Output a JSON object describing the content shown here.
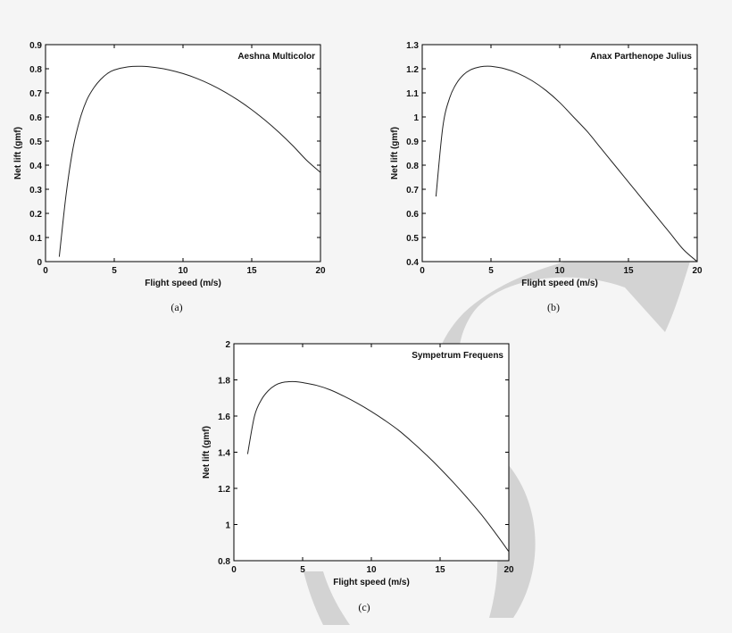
{
  "chart_data": [
    {
      "id": "a",
      "type": "line",
      "title": "Aeshna Multicolor",
      "xlabel": "Flight speed (m/s)",
      "ylabel": "Net lift (gmf)",
      "caption": "(a)",
      "xlim": [
        0,
        20
      ],
      "ylim": [
        0,
        0.9
      ],
      "xticks": [
        0,
        5,
        10,
        15,
        20
      ],
      "yticks": [
        0,
        0.1,
        0.2,
        0.3,
        0.4,
        0.5,
        0.6,
        0.7,
        0.8,
        0.9
      ],
      "ytick_labels": [
        "0",
        "0.1",
        "0.2",
        "0.3",
        "0.4",
        "0.5",
        "0.6",
        "0.7",
        "0.8",
        "0.9"
      ],
      "grid": false,
      "series": [
        {
          "x": [
            1,
            1.5,
            2,
            2.5,
            3,
            3.5,
            4,
            4.5,
            5,
            6,
            7,
            8,
            9,
            10,
            11,
            12,
            13,
            14,
            15,
            16,
            17,
            18,
            19,
            20
          ],
          "y": [
            0.02,
            0.28,
            0.47,
            0.59,
            0.67,
            0.72,
            0.755,
            0.78,
            0.795,
            0.808,
            0.81,
            0.805,
            0.795,
            0.78,
            0.76,
            0.735,
            0.705,
            0.67,
            0.63,
            0.585,
            0.535,
            0.48,
            0.42,
            0.37
          ]
        }
      ]
    },
    {
      "id": "b",
      "type": "line",
      "title": "Anax Parthenope Julius",
      "xlabel": "Flight speed (m/s)",
      "ylabel": "Net lift (gmf)",
      "caption": "(b)",
      "xlim": [
        0,
        20
      ],
      "ylim": [
        0.4,
        1.3
      ],
      "xticks": [
        0,
        5,
        10,
        15,
        20
      ],
      "yticks": [
        0.4,
        0.5,
        0.6,
        0.7,
        0.8,
        0.9,
        1.0,
        1.1,
        1.2,
        1.3
      ],
      "ytick_labels": [
        "0.4",
        "0.5",
        "0.6",
        "0.7",
        "0.8",
        "0.9",
        "1",
        "1.1",
        "1.2",
        "1.3"
      ],
      "grid": false,
      "series": [
        {
          "x": [
            1,
            1.5,
            2,
            2.5,
            3,
            3.5,
            4,
            4.5,
            5,
            6,
            7,
            8,
            9,
            10,
            11,
            12,
            13,
            14,
            15,
            16,
            17,
            18,
            19,
            20
          ],
          "y": [
            0.67,
            0.96,
            1.08,
            1.14,
            1.175,
            1.195,
            1.205,
            1.21,
            1.21,
            1.2,
            1.18,
            1.15,
            1.11,
            1.06,
            1.0,
            0.94,
            0.87,
            0.8,
            0.73,
            0.66,
            0.59,
            0.52,
            0.45,
            0.4
          ]
        }
      ]
    },
    {
      "id": "c",
      "type": "line",
      "title": "Sympetrum Frequens",
      "xlabel": "Flight speed (m/s)",
      "ylabel": "Net lift (gmf)",
      "caption": "(c)",
      "xlim": [
        0,
        20
      ],
      "ylim": [
        0.8,
        2.0
      ],
      "xticks": [
        0,
        5,
        10,
        15,
        20
      ],
      "yticks": [
        0.8,
        1.0,
        1.2,
        1.4,
        1.6,
        1.8,
        2.0
      ],
      "ytick_labels": [
        "0.8",
        "1",
        "1.2",
        "1.4",
        "1.6",
        "1.8",
        "2"
      ],
      "grid": false,
      "series": [
        {
          "x": [
            1,
            1.5,
            2,
            2.5,
            3,
            3.5,
            4,
            4.5,
            5,
            6,
            7,
            8,
            9,
            10,
            11,
            12,
            13,
            14,
            15,
            16,
            17,
            18,
            19,
            20
          ],
          "y": [
            1.39,
            1.6,
            1.69,
            1.74,
            1.77,
            1.785,
            1.79,
            1.79,
            1.785,
            1.77,
            1.745,
            1.71,
            1.67,
            1.625,
            1.575,
            1.52,
            1.455,
            1.385,
            1.31,
            1.23,
            1.145,
            1.055,
            0.955,
            0.85
          ]
        }
      ]
    }
  ]
}
